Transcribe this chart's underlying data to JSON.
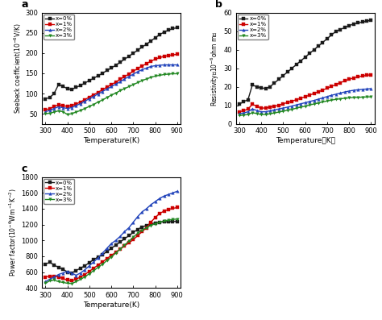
{
  "temp_a": [
    300,
    320,
    340,
    360,
    380,
    400,
    420,
    440,
    460,
    480,
    500,
    520,
    540,
    560,
    580,
    600,
    620,
    640,
    660,
    680,
    700,
    720,
    740,
    760,
    780,
    800,
    820,
    840,
    860,
    880,
    900
  ],
  "seebeck_x0": [
    87,
    90,
    100,
    122,
    118,
    112,
    110,
    115,
    120,
    126,
    132,
    138,
    144,
    150,
    157,
    163,
    170,
    177,
    185,
    192,
    200,
    207,
    215,
    222,
    230,
    238,
    246,
    252,
    257,
    261,
    263
  ],
  "seebeck_x1": [
    60,
    62,
    68,
    72,
    70,
    68,
    70,
    74,
    79,
    85,
    91,
    97,
    103,
    109,
    116,
    122,
    128,
    135,
    142,
    148,
    155,
    162,
    168,
    174,
    180,
    185,
    189,
    192,
    194,
    196,
    197
  ],
  "seebeck_x2": [
    55,
    58,
    63,
    67,
    65,
    63,
    65,
    70,
    75,
    81,
    87,
    93,
    99,
    105,
    111,
    117,
    123,
    129,
    136,
    142,
    148,
    154,
    159,
    163,
    167,
    169,
    170,
    171,
    171,
    171,
    171
  ],
  "seebeck_x3": [
    50,
    51,
    54,
    57,
    55,
    48,
    50,
    54,
    58,
    63,
    68,
    73,
    79,
    84,
    90,
    96,
    101,
    107,
    112,
    117,
    122,
    127,
    132,
    136,
    140,
    143,
    145,
    147,
    148,
    149,
    149
  ],
  "temp_b": [
    300,
    320,
    340,
    360,
    380,
    400,
    420,
    440,
    460,
    480,
    500,
    520,
    540,
    560,
    580,
    600,
    620,
    640,
    660,
    680,
    700,
    720,
    740,
    760,
    780,
    800,
    820,
    840,
    860,
    880,
    900
  ],
  "resist_x0": [
    10.5,
    12,
    13,
    21,
    20,
    19.5,
    19,
    20,
    22,
    24,
    26,
    28,
    30,
    32,
    34,
    36,
    38,
    40,
    42,
    44,
    46,
    48,
    50,
    51,
    52,
    53,
    54,
    54.5,
    55,
    55.5,
    56
  ],
  "resist_x1": [
    6.5,
    7,
    8,
    10.5,
    9.5,
    8.5,
    8.5,
    9,
    9.5,
    10,
    10.8,
    11.5,
    12.2,
    13,
    13.8,
    14.6,
    15.5,
    16.4,
    17.3,
    18.2,
    19.2,
    20.2,
    21.2,
    22.2,
    23.2,
    24,
    24.8,
    25.4,
    25.8,
    26.2,
    26.5
  ],
  "resist_x2": [
    5.5,
    5.8,
    6.5,
    8,
    7.2,
    6.5,
    6.5,
    7,
    7.5,
    8,
    8.5,
    9,
    9.6,
    10.2,
    10.8,
    11.4,
    12,
    12.6,
    13.3,
    14,
    14.7,
    15.4,
    16,
    16.6,
    17.2,
    17.7,
    18.1,
    18.4,
    18.6,
    18.8,
    19
  ],
  "resist_x3": [
    4.5,
    4.7,
    5,
    6,
    5.5,
    5,
    5,
    5.4,
    5.8,
    6.3,
    6.8,
    7.3,
    7.8,
    8.4,
    9,
    9.5,
    10.1,
    10.7,
    11.2,
    11.8,
    12.3,
    12.8,
    13.2,
    13.5,
    13.8,
    14,
    14.2,
    14.3,
    14.4,
    14.5,
    14.6
  ],
  "temp_c": [
    300,
    320,
    340,
    360,
    380,
    400,
    420,
    440,
    460,
    480,
    500,
    520,
    540,
    560,
    580,
    600,
    620,
    640,
    660,
    680,
    700,
    720,
    740,
    760,
    780,
    800,
    820,
    840,
    860,
    880,
    900
  ],
  "power_x0": [
    700,
    725,
    690,
    660,
    640,
    600,
    590,
    620,
    650,
    680,
    720,
    760,
    790,
    820,
    860,
    900,
    940,
    980,
    1020,
    1060,
    1100,
    1140,
    1170,
    1190,
    1210,
    1220,
    1230,
    1235,
    1237,
    1240,
    1242
  ],
  "power_x1": [
    540,
    550,
    545,
    540,
    520,
    500,
    490,
    510,
    540,
    570,
    610,
    650,
    690,
    730,
    770,
    810,
    850,
    890,
    930,
    970,
    1010,
    1060,
    1110,
    1160,
    1230,
    1290,
    1340,
    1370,
    1390,
    1405,
    1415
  ],
  "power_x2": [
    480,
    510,
    540,
    570,
    590,
    610,
    590,
    560,
    590,
    630,
    680,
    730,
    780,
    840,
    900,
    960,
    1000,
    1050,
    1110,
    1160,
    1230,
    1300,
    1360,
    1400,
    1450,
    1490,
    1530,
    1560,
    1580,
    1600,
    1620
  ],
  "power_x3": [
    460,
    490,
    500,
    480,
    470,
    460,
    455,
    480,
    510,
    540,
    580,
    620,
    660,
    700,
    745,
    790,
    840,
    890,
    940,
    990,
    1040,
    1090,
    1130,
    1160,
    1190,
    1210,
    1230,
    1245,
    1255,
    1265,
    1270
  ],
  "color_x0": "#1a1a1a",
  "color_x1": "#cc0000",
  "color_x2": "#2244bb",
  "color_x3": "#228822",
  "marker_x0": "s",
  "marker_x1": "s",
  "marker_x2": "^",
  "marker_x3": "v",
  "markersize": 2.5,
  "linewidth": 1.0,
  "ylim_a": [
    25,
    300
  ],
  "ylim_b": [
    0,
    60
  ],
  "ylim_c": [
    400,
    1800
  ],
  "yticks_a": [
    50,
    100,
    150,
    200,
    250,
    300
  ],
  "yticks_b": [
    0,
    10,
    20,
    30,
    40,
    50,
    60
  ],
  "yticks_c": [
    400,
    600,
    800,
    1000,
    1200,
    1400,
    1600,
    1800
  ],
  "xticks": [
    300,
    400,
    500,
    600,
    700,
    800,
    900
  ],
  "legend_labels": [
    "x=0%",
    "x=1%",
    "x=2%",
    "x=3%"
  ],
  "bg_color": "#ffffff"
}
